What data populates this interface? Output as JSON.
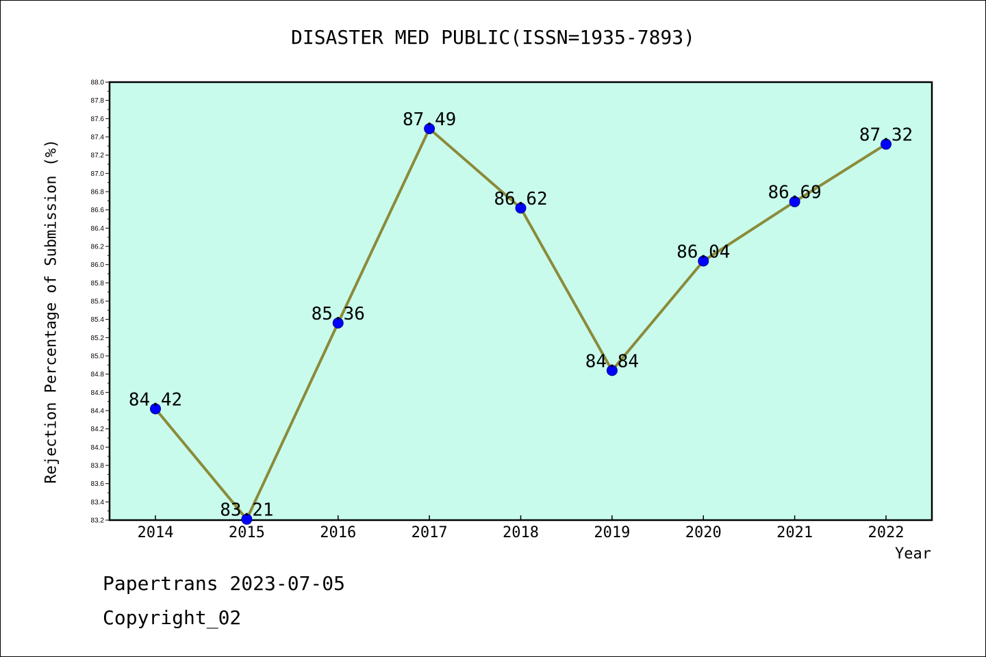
{
  "footer": {
    "line1": "Papertrans 2023-07-05",
    "line2": "Copyright_02"
  },
  "chart_data": {
    "type": "line",
    "title": "DISASTER MED PUBLIC(ISSN=1935-7893)",
    "xlabel": "Year",
    "ylabel": "Rejection Percentage of Submission (%)",
    "categories": [
      "2014",
      "2015",
      "2016",
      "2017",
      "2018",
      "2019",
      "2020",
      "2021",
      "2022"
    ],
    "series": [
      {
        "values": [
          84.42,
          83.21,
          85.36,
          87.49,
          86.62,
          84.84,
          86.04,
          86.69,
          87.32
        ],
        "data_labels": [
          "84.42",
          "83.21",
          "85.36",
          "87.49",
          "86.62",
          "84.84",
          "86.04",
          "86.69",
          "87.32"
        ]
      }
    ],
    "ylim": [
      83.2,
      88.0
    ],
    "yticks": [
      "83.2",
      "83.4",
      "83.6",
      "83.8",
      "84.0",
      "84.2",
      "84.4",
      "84.6",
      "84.8",
      "85.0",
      "85.2",
      "85.4",
      "85.6",
      "85.8",
      "86.0",
      "86.2",
      "86.4",
      "86.6",
      "86.8",
      "87.0",
      "87.2",
      "87.4",
      "87.6",
      "87.8",
      "88.0"
    ],
    "grid": false,
    "colors": {
      "plot_background": "#c8fbec",
      "line": "#8b8b3a",
      "marker": "#0000ff"
    }
  }
}
